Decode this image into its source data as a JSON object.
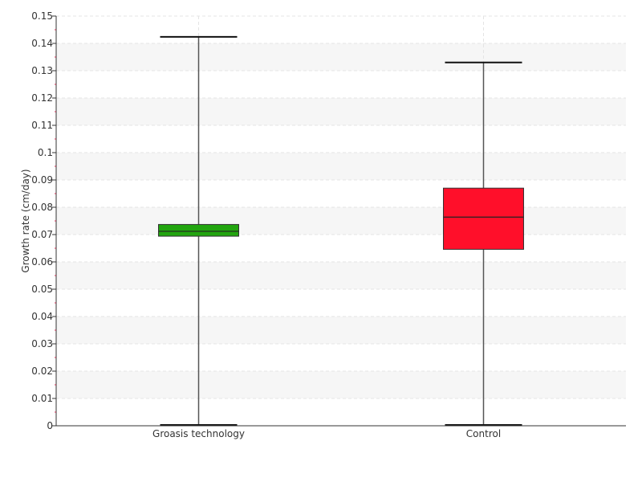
{
  "chart_data": {
    "type": "box",
    "ylabel": "Growth rate (cm/day)",
    "xlabel": "",
    "ylim": [
      0,
      0.15
    ],
    "ytick_step": 0.01,
    "yticks": [
      "0",
      "0.01",
      "0.02",
      "0.03",
      "0.04",
      "0.05",
      "0.06",
      "0.07",
      "0.08",
      "0.09",
      "0.1",
      "0.11",
      "0.12",
      "0.13",
      "0.14",
      "0.15"
    ],
    "grid": true,
    "categories": [
      "Groasis technology",
      "Control"
    ],
    "boxes": [
      {
        "category": "Groasis technology",
        "min": 0.0003,
        "q1": 0.0694,
        "median": 0.0712,
        "q3": 0.0737,
        "max": 0.1424,
        "color": "#22a50f"
      },
      {
        "category": "Control",
        "min": 0.0003,
        "q1": 0.0646,
        "median": 0.0764,
        "q3": 0.087,
        "max": 0.133,
        "color": "#ff0f2a"
      }
    ]
  }
}
